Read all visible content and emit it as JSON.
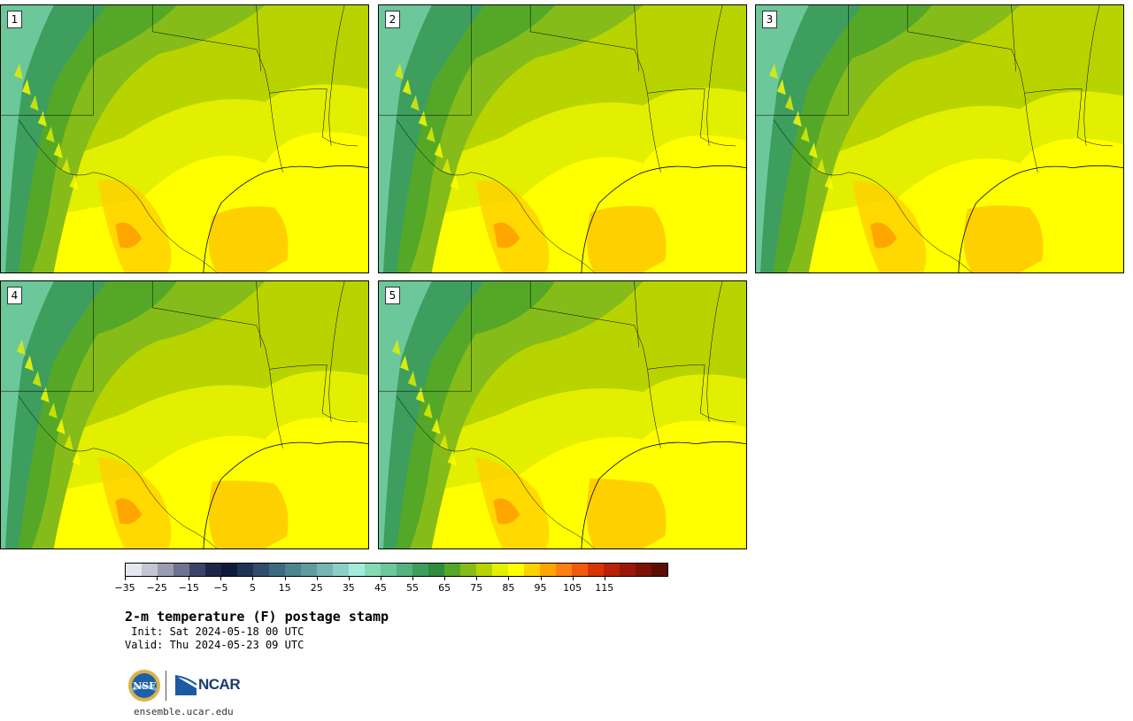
{
  "panels": [
    {
      "label": "1",
      "variant": 0
    },
    {
      "label": "2",
      "variant": 1
    },
    {
      "label": "3",
      "variant": 2
    },
    {
      "label": "4",
      "variant": 3
    },
    {
      "label": "5",
      "variant": 4
    }
  ],
  "colorbar": {
    "colors": [
      "#e6e8ee",
      "#c4c6d4",
      "#9a9db2",
      "#6f7391",
      "#3b4468",
      "#1d2848",
      "#0f1a38",
      "#1e3554",
      "#304f6c",
      "#3e6a80",
      "#4e8390",
      "#5f9ba0",
      "#75b5b3",
      "#8ccfc8",
      "#a4eadc",
      "#86d9b6",
      "#6cc79a",
      "#52b37e",
      "#3d9e5e",
      "#2f8c3c",
      "#55a827",
      "#86bc1a",
      "#b7d400",
      "#e2ef00",
      "#ffff00",
      "#ffd000",
      "#ffa500",
      "#ff7f10",
      "#f05a0c",
      "#d83408",
      "#bb2108",
      "#9a1808",
      "#7a1206",
      "#5c0e05"
    ],
    "tick_labels": [
      "−35",
      "−25",
      "−15",
      "−5",
      "5",
      "15",
      "25",
      "35",
      "45",
      "55",
      "65",
      "75",
      "85",
      "95",
      "105",
      "115"
    ]
  },
  "title": "2-m temperature (F) postage stamp",
  "init": " Init: Sat 2024-05-18 00 UTC",
  "valid": "Valid: Thu 2024-05-23 09 UTC",
  "logos": {
    "nsf": "NSF",
    "ncar": "NCAR"
  },
  "footer": "ensemble.ucar.edu"
}
